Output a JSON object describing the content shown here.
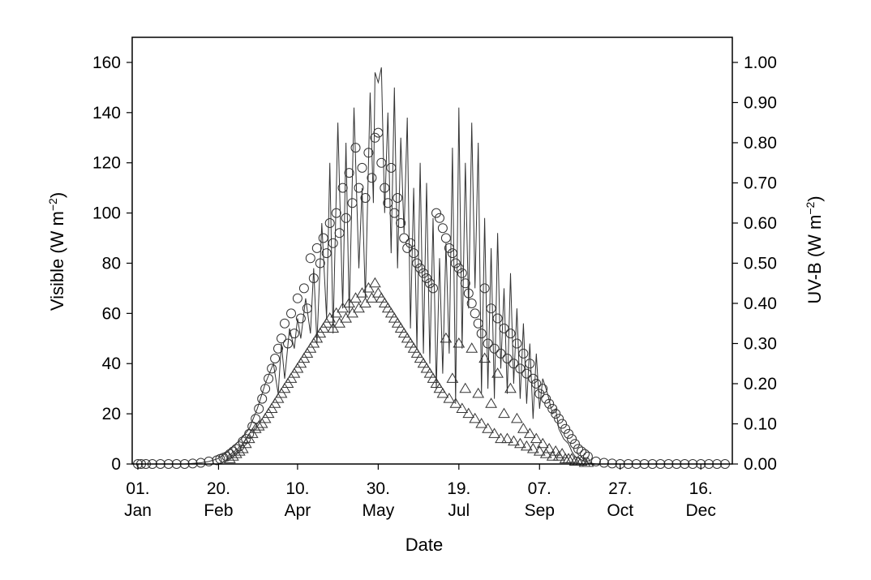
{
  "chart_data": {
    "type": "scatter",
    "xlabel": "Date",
    "ylabel": "Visible (W m",
    "ylabel_sup": "−2",
    "ylabel_close": ")",
    "y2label": "UV-B (W m",
    "y2label_sup": "−2",
    "y2label_close": ")",
    "xlim": [
      1,
      366
    ],
    "ylim": [
      0,
      170
    ],
    "y2lim": [
      0,
      1.0625
    ],
    "xticks": [
      {
        "day": 1,
        "line1": "01.",
        "line2": "Jan"
      },
      {
        "day": 51,
        "line1": "20.",
        "line2": "Feb"
      },
      {
        "day": 100,
        "line1": "10.",
        "line2": "Apr"
      },
      {
        "day": 150,
        "line1": "30.",
        "line2": "May"
      },
      {
        "day": 200,
        "line1": "19.",
        "line2": "Jul"
      },
      {
        "day": 250,
        "line1": "07.",
        "line2": "Sep"
      },
      {
        "day": 300,
        "line1": "27.",
        "line2": "Oct"
      },
      {
        "day": 350,
        "line1": "16.",
        "line2": "Dec"
      }
    ],
    "yticks": [
      0,
      20,
      40,
      60,
      80,
      100,
      120,
      140,
      160
    ],
    "y2ticks": [
      "0.00",
      "0.10",
      "0.20",
      "0.30",
      "0.40",
      "0.50",
      "0.60",
      "0.70",
      "0.80",
      "0.90",
      "1.00"
    ],
    "grid": false,
    "colors": {
      "line": "#333333",
      "marker": "#333333",
      "axis": "#000000"
    },
    "series": [
      {
        "marker": "line",
        "axis": "left",
        "x": [
          1,
          5,
          10,
          20,
          30,
          40,
          45,
          50,
          55,
          60,
          65,
          70,
          75,
          80,
          85,
          88,
          90,
          92,
          95,
          98,
          100,
          102,
          105,
          108,
          110,
          112,
          115,
          118,
          120,
          122,
          125,
          128,
          130,
          132,
          135,
          138,
          140,
          142,
          145,
          147,
          148,
          150,
          152,
          154,
          156,
          158,
          160,
          162,
          164,
          166,
          168,
          170,
          172,
          174,
          176,
          178,
          180,
          182,
          184,
          186,
          188,
          190,
          192,
          194,
          196,
          198,
          200,
          202,
          204,
          206,
          208,
          210,
          212,
          214,
          216,
          218,
          220,
          222,
          224,
          226,
          228,
          230,
          232,
          234,
          236,
          238,
          240,
          242,
          244,
          246,
          248,
          250,
          252,
          255,
          258,
          260,
          262,
          265,
          268,
          270,
          272,
          275,
          278,
          280,
          285,
          290,
          300,
          320,
          340,
          366
        ],
        "y": [
          0,
          0,
          0,
          0,
          0,
          0.5,
          1,
          2,
          4,
          7,
          10,
          14,
          22,
          32,
          40,
          28,
          48,
          34,
          54,
          46,
          58,
          50,
          66,
          52,
          78,
          48,
          96,
          58,
          120,
          52,
          136,
          62,
          128,
          60,
          142,
          78,
          110,
          66,
          148,
          104,
          156,
          152,
          158,
          100,
          140,
          84,
          150,
          78,
          130,
          92,
          138,
          54,
          110,
          46,
          120,
          44,
          112,
          40,
          98,
          30,
          82,
          36,
          88,
          44,
          126,
          24,
          142,
          46,
          120,
          62,
          136,
          70,
          128,
          28,
          98,
          30,
          86,
          26,
          92,
          38,
          70,
          28,
          76,
          32,
          62,
          26,
          56,
          24,
          48,
          18,
          44,
          22,
          34,
          28,
          20,
          22,
          14,
          10,
          8,
          5,
          3,
          2,
          1,
          0.5,
          0,
          0,
          0,
          0,
          0,
          0
        ]
      },
      {
        "marker": "circle",
        "axis": "left",
        "x": [
          1,
          3,
          6,
          10,
          15,
          20,
          25,
          30,
          35,
          40,
          45,
          50,
          52,
          54,
          56,
          58,
          60,
          62,
          64,
          66,
          68,
          70,
          72,
          74,
          76,
          78,
          80,
          82,
          84,
          86,
          88,
          90,
          92,
          94,
          96,
          98,
          100,
          102,
          104,
          106,
          108,
          110,
          112,
          114,
          116,
          118,
          120,
          122,
          124,
          126,
          128,
          130,
          132,
          134,
          136,
          138,
          140,
          142,
          144,
          146,
          148,
          150,
          152,
          154,
          156,
          158,
          160,
          162,
          164,
          166,
          168,
          170,
          172,
          174,
          176,
          178,
          180,
          182,
          184,
          186,
          188,
          190,
          192,
          194,
          196,
          198,
          200,
          202,
          204,
          206,
          208,
          210,
          212,
          214,
          216,
          218,
          220,
          222,
          224,
          226,
          228,
          230,
          232,
          234,
          236,
          238,
          240,
          242,
          244,
          246,
          248,
          250,
          252,
          254,
          256,
          258,
          260,
          262,
          264,
          266,
          268,
          270,
          272,
          274,
          276,
          278,
          280,
          285,
          290,
          295,
          300,
          305,
          310,
          315,
          320,
          325,
          330,
          335,
          340,
          345,
          350,
          355,
          360,
          365
        ],
        "y": [
          0,
          0,
          0,
          0,
          0,
          0,
          0,
          0,
          0.2,
          0.5,
          1,
          1.5,
          2,
          2.5,
          3,
          4,
          5,
          6,
          7,
          9,
          10,
          12,
          15,
          18,
          22,
          26,
          30,
          34,
          38,
          42,
          46,
          50,
          56,
          48,
          60,
          52,
          66,
          58,
          70,
          62,
          82,
          74,
          86,
          80,
          90,
          84,
          96,
          88,
          100,
          92,
          110,
          98,
          116,
          104,
          126,
          110,
          118,
          106,
          124,
          114,
          130,
          132,
          120,
          110,
          104,
          118,
          100,
          106,
          96,
          90,
          86,
          88,
          84,
          80,
          78,
          76,
          74,
          72,
          70,
          100,
          98,
          94,
          90,
          86,
          84,
          80,
          78,
          76,
          72,
          68,
          64,
          60,
          56,
          52,
          70,
          48,
          62,
          46,
          58,
          44,
          54,
          42,
          52,
          40,
          48,
          38,
          44,
          36,
          40,
          34,
          32,
          28,
          30,
          26,
          24,
          22,
          20,
          18,
          16,
          14,
          12,
          10,
          8,
          6,
          5,
          4,
          3,
          1,
          0.5,
          0.2,
          0,
          0,
          0,
          0,
          0,
          0,
          0,
          0,
          0,
          0,
          0,
          0,
          0,
          0
        ]
      },
      {
        "marker": "triangle",
        "axis": "left",
        "x": [
          58,
          60,
          62,
          64,
          66,
          68,
          70,
          72,
          74,
          76,
          78,
          80,
          82,
          84,
          86,
          88,
          90,
          92,
          94,
          96,
          98,
          100,
          102,
          104,
          106,
          108,
          110,
          112,
          114,
          116,
          118,
          120,
          122,
          124,
          126,
          128,
          130,
          132,
          134,
          136,
          138,
          140,
          142,
          144,
          146,
          148,
          150,
          152,
          154,
          156,
          158,
          160,
          162,
          164,
          166,
          168,
          170,
          172,
          174,
          176,
          178,
          180,
          182,
          184,
          186,
          188,
          190,
          192,
          194,
          196,
          198,
          200,
          202,
          204,
          206,
          208,
          210,
          212,
          214,
          216,
          218,
          220,
          222,
          224,
          226,
          228,
          230,
          232,
          234,
          236,
          238,
          240,
          242,
          244,
          246,
          248,
          250,
          252,
          254,
          256,
          258,
          260,
          262,
          264,
          266,
          268,
          270,
          272,
          274,
          276,
          278,
          280
        ],
        "y": [
          2,
          3,
          4,
          5,
          6,
          8,
          10,
          12,
          14,
          15,
          16,
          18,
          20,
          22,
          24,
          26,
          28,
          30,
          32,
          34,
          36,
          38,
          40,
          42,
          44,
          46,
          48,
          50,
          52,
          54,
          56,
          58,
          54,
          60,
          56,
          62,
          58,
          64,
          60,
          66,
          62,
          68,
          64,
          70,
          66,
          72,
          68,
          66,
          64,
          62,
          60,
          58,
          56,
          54,
          52,
          50,
          48,
          46,
          44,
          42,
          40,
          38,
          36,
          34,
          32,
          30,
          28,
          50,
          26,
          34,
          24,
          48,
          22,
          30,
          20,
          46,
          18,
          28,
          16,
          42,
          14,
          24,
          12,
          36,
          10,
          20,
          10,
          30,
          9,
          18,
          8,
          14,
          7,
          12,
          6,
          10,
          5,
          8,
          4,
          6,
          3,
          5,
          3,
          4,
          2,
          2,
          2,
          1,
          1,
          1,
          0.5,
          0.5
        ]
      }
    ]
  }
}
